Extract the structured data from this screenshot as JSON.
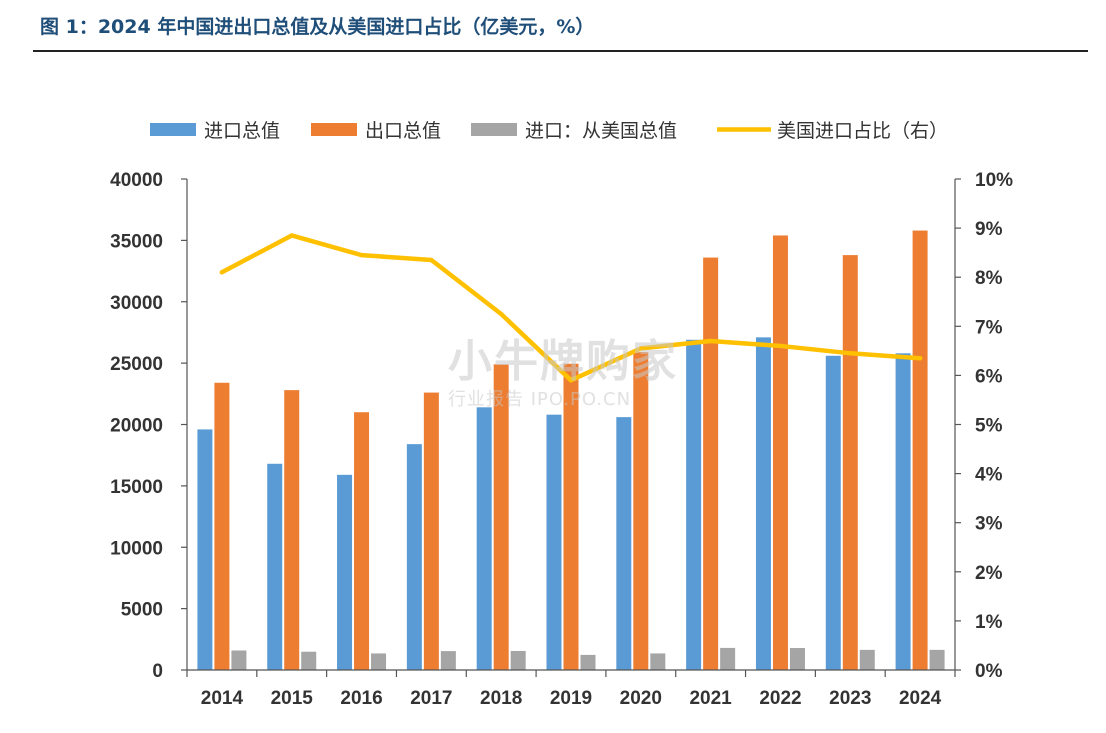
{
  "title": "图 1：2024 年中国进出口总值及从美国进口占比（亿美元，%）",
  "watermark": {
    "text": "小牛牌购家",
    "sub": "行业报告 IPO.PO.CN"
  },
  "chart_data": {
    "type": "bar",
    "title": "",
    "categories": [
      "2014",
      "2015",
      "2016",
      "2017",
      "2018",
      "2019",
      "2020",
      "2021",
      "2022",
      "2023",
      "2024"
    ],
    "ylim_left": [
      0,
      40000
    ],
    "yticks_left": [
      "0",
      "5000",
      "10000",
      "15000",
      "20000",
      "25000",
      "30000",
      "35000",
      "40000"
    ],
    "ylim_right": [
      0,
      10
    ],
    "yticks_right": [
      "0%",
      "1%",
      "2%",
      "3%",
      "4%",
      "5%",
      "6%",
      "7%",
      "8%",
      "9%",
      "10%"
    ],
    "grid": false,
    "legend_position": "top",
    "series": [
      {
        "name": "进口总值",
        "type": "bar",
        "axis": "left",
        "color": "#5b9bd5",
        "values": [
          19600,
          16800,
          15900,
          18400,
          21400,
          20800,
          20600,
          26900,
          27100,
          25600,
          25800
        ]
      },
      {
        "name": "出口总值",
        "type": "bar",
        "axis": "left",
        "color": "#ed7d31",
        "values": [
          23400,
          22800,
          21000,
          22600,
          24900,
          24950,
          25900,
          33600,
          35400,
          33800,
          35800
        ]
      },
      {
        "name": "进口：从美国总值",
        "type": "bar",
        "axis": "left",
        "color": "#a5a5a5",
        "values": [
          1590,
          1490,
          1350,
          1540,
          1550,
          1230,
          1350,
          1800,
          1790,
          1640,
          1640
        ]
      },
      {
        "name": "美国进口占比（右）",
        "type": "line",
        "axis": "right",
        "color": "#ffc000",
        "values": [
          8.1,
          8.85,
          8.45,
          8.35,
          7.25,
          5.9,
          6.55,
          6.7,
          6.6,
          6.45,
          6.35
        ]
      }
    ]
  }
}
